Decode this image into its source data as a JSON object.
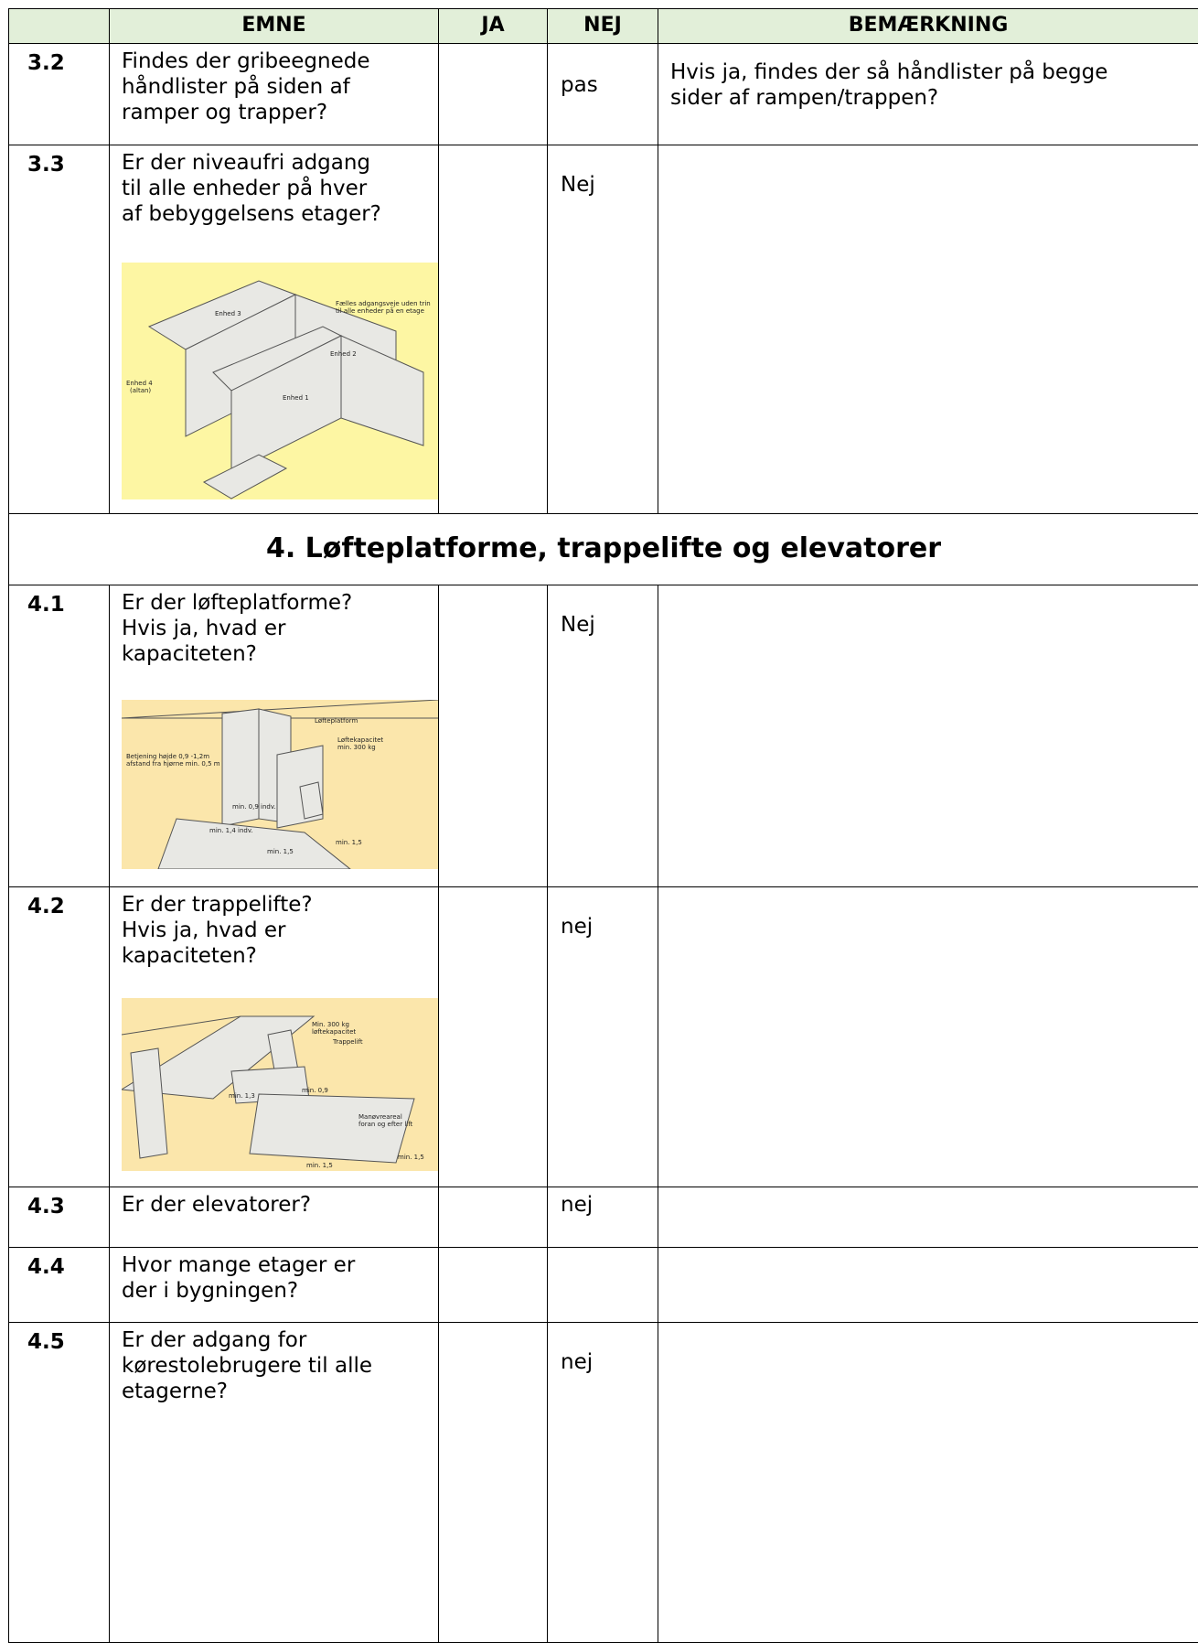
{
  "header": {
    "columns": [
      "EMNE",
      "JA",
      "NEJ",
      "BEMÆRKNING"
    ]
  },
  "rows": [
    {
      "number": "3.2",
      "question": [
        "Findes der gribeegnede",
        "håndlister på siden af",
        "ramper og trapper?"
      ],
      "nej": "pas",
      "remark": [
        "Hvis ja, findes der så håndlister på begge",
        "sider af rampen/trappen?"
      ]
    },
    {
      "number": "3.3",
      "question": [
        "Er der niveaufri adgang",
        "til alle enheder på hver",
        "af bebyggelsens etager?"
      ],
      "nej": "Nej",
      "image": {
        "labels": [
          "Enhed 3",
          "Fælles adgangsveje uden trin",
          "til alle enheder på en etage",
          "Enhed 2",
          "Enhed 4",
          "(altan)",
          "Enhed 1"
        ]
      }
    },
    {
      "section": "4. Løfteplatforme, trappelifte og elevatorer"
    },
    {
      "number": "4.1",
      "question": [
        "Er der løfteplatforme?",
        "Hvis ja, hvad er",
        "kapaciteten?"
      ],
      "nej": "Nej",
      "image": {
        "labels": [
          "Løfteplatform",
          "Løftekapacitet",
          "min. 300 kg",
          "Betjening højde 0,9 -1,2m",
          "afstand fra hjørne min. 0,5 m",
          "min. 0,9 indv.",
          "min. 1,4 indv.",
          "min. 1,5",
          "min. 1,5"
        ]
      }
    },
    {
      "number": "4.2",
      "question": [
        "Er der trappelifte?",
        "Hvis ja, hvad er",
        "kapaciteten?"
      ],
      "nej": "nej",
      "image": {
        "labels": [
          "Min. 300 kg",
          "løftekapacitet",
          "Trappelift",
          "min. 1,3",
          "min. 0,9",
          "Manøvreareal",
          "foran og efter lift",
          "min. 1,5",
          "min. 1,5"
        ]
      }
    },
    {
      "number": "4.3",
      "question": [
        "Er der elevatorer?"
      ],
      "nej": "nej"
    },
    {
      "number": "4.4",
      "question": [
        "Hvor mange etager er",
        "der i bygningen?"
      ]
    },
    {
      "number": "4.5",
      "question": [
        "Er der adgang for",
        "kørestolebrugere til alle",
        "etagerne?"
      ],
      "nej": "nej"
    }
  ]
}
